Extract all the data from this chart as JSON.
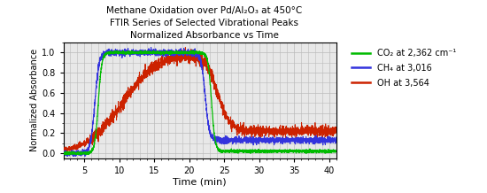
{
  "title_line1": "Methane Oxidation over Pd/Al₂O₃ at 450°C",
  "title_line2": "FTIR Series of Selected Vibrational Peaks",
  "title_line3": "Normalized Absorbance vs Time",
  "xlabel": "Time (min)",
  "ylabel": "Normalized Absorbance",
  "xlim": [
    2,
    41
  ],
  "ylim": [
    -0.05,
    1.1
  ],
  "yticks": [
    0.0,
    0.2,
    0.4,
    0.6,
    0.8,
    1.0
  ],
  "xticks": [
    5,
    10,
    15,
    20,
    25,
    30,
    35,
    40
  ],
  "legend": [
    {
      "label": "CO₂ at 2,362 cm⁻¹",
      "color": "#00bb00"
    },
    {
      "label": "CH₄ at 3,016",
      "color": "#3333dd"
    },
    {
      "label": "OH at 3,564",
      "color": "#cc2200"
    }
  ],
  "co2_color": "#00bb00",
  "ch4_color": "#3333dd",
  "oh_color": "#cc2200",
  "bg_color": "#e8e8e8",
  "grid_color": "#bbbbbb"
}
